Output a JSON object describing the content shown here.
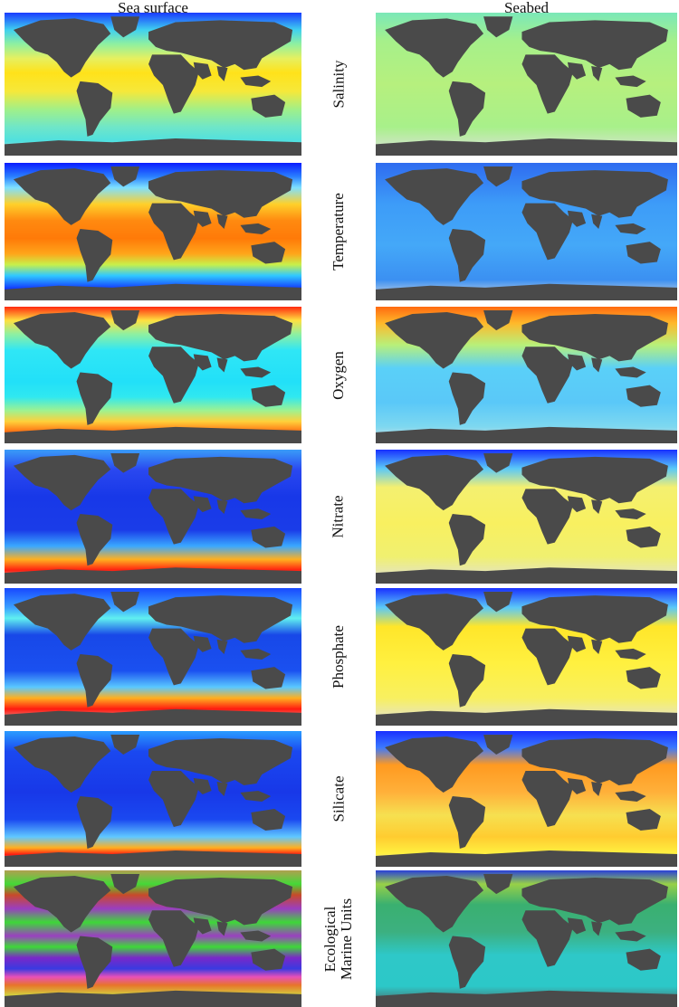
{
  "figure": {
    "columns": [
      {
        "id": "left",
        "title": "Sea surface"
      },
      {
        "id": "right",
        "title": "Seabed"
      }
    ],
    "rows": [
      {
        "label": "Salinity",
        "surface": {
          "bg": "linear-gradient(180deg,#1a3cff 0%,#3fd0f0 12%,#8ff0a0 22%,#e6f060 32%,#ffe21a 42%,#f6e83a 55%,#9ff08a 68%,#6fe6c8 80%,#4fe0e0 90%,#d8d8d8 100%)"
        },
        "seabed": {
          "bg": "linear-gradient(180deg,#7be8b8 0%,#a6f08a 20%,#b6f07e 50%,#a8f08a 80%,#e0e0e0 100%)"
        }
      },
      {
        "label": "Temperature",
        "surface": {
          "bg": "linear-gradient(180deg,#0a1cff 0%,#2a80ff 10%,#7fe0ff 18%,#ffd02a 30%,#ff8a10 42%,#ff7a08 55%,#ffa51a 66%,#c8f04a 74%,#30c8ff 82%,#1030ff 92%,#d8d8d8 100%)"
        },
        "seabed": {
          "bg": "linear-gradient(180deg,#2f6cf0 0%,#3d9cf8 30%,#44a8f8 60%,#3b90f2 85%,#e0e0e0 100%)"
        }
      },
      {
        "label": "Oxygen",
        "surface": {
          "bg": "linear-gradient(180deg,#ff2a10 0%,#ffe040 10%,#8ff0a0 20%,#2fe6f6 32%,#22e0f8 55%,#30e8f0 66%,#9ef290 76%,#ffd03a 84%,#ff6a10 92%,#d8d8d8 100%)"
        },
        "seabed": {
          "bg": "linear-gradient(180deg,#ff6a10 0%,#ffb82a 12%,#b8f07a 28%,#5ad0f8 45%,#5ac8f8 70%,#7ed8f0 88%,#e0e0e0 100%)"
        }
      },
      {
        "label": "Nitrate",
        "surface": {
          "bg": "linear-gradient(180deg,#3a9cf8 0%,#2a48f0 15%,#1838e8 35%,#1a3ce8 60%,#3aa8ff 72%,#ffb020 82%,#ff2010 90%,#d8d8d8 100%)"
        },
        "seabed": {
          "bg": "linear-gradient(180deg,#1830ff 0%,#5ac8f8 14%,#f4f070 28%,#f8f060 55%,#f0f070 80%,#e0e0e0 100%)"
        }
      },
      {
        "label": "Phosphate",
        "surface": {
          "bg": "linear-gradient(180deg,#1848ff 0%,#3aa0ff 14%,#60f0f0 22%,#1848e8 34%,#1a50f0 60%,#5ac8ff 72%,#ffb020 80%,#ff1a10 88%,#d8d8d8 100%)"
        },
        "seabed": {
          "bg": "linear-gradient(180deg,#1a30ff 0%,#5ac8f8 14%,#ffe62a 28%,#fff040 55%,#f8f060 80%,#e0e0e0 100%)"
        }
      },
      {
        "label": "Silicate",
        "surface": {
          "bg": "linear-gradient(180deg,#2a9cff 0%,#1a48f0 15%,#1838e8 45%,#1a48f0 65%,#60c8ff 78%,#ffb020 86%,#ff1a10 91%,#d8d8d8 100%)"
        },
        "seabed": {
          "bg": "linear-gradient(180deg,#1a30ff 0%,#3a78ff 12%,#ff9a20 25%,#ffb03a 45%,#f6e050 62%,#ffcc30 78%,#fff040 90%,#e0e0e0 100%)"
        }
      },
      {
        "label": "Ecological\nMarine Units",
        "surface": {
          "bg": "linear-gradient(180deg,#b0a050 0%,#44d838 10%,#c84a2a 18%,#9a3ec0 28%,#3ed838 38%,#9a40c0 48%,#3ed838 56%,#7a28c8 64%,#3a3ae0 72%,#e850b8 78%,#e8742a 84%,#d0d840 92%,#555555 100%)"
        },
        "seabed": {
          "bg": "linear-gradient(180deg,#2a40d8 0%,#98d048 10%,#3ab070 25%,#3cb080 45%,#2ec8c8 62%,#2cc8c8 85%,#555555 100%)"
        }
      }
    ]
  }
}
